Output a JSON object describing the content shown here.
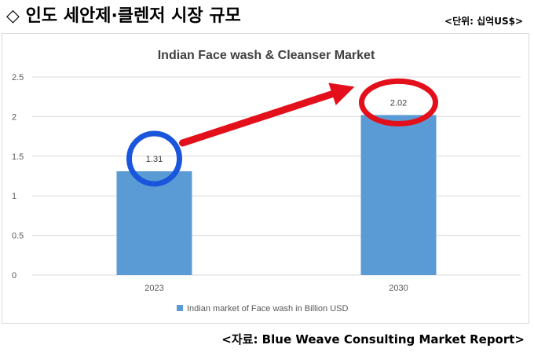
{
  "header": {
    "title": "◇ 인도 세안제·클렌저 시장 규모",
    "unit": "<단위: 십억US$>"
  },
  "source": "<자료: Blue Weave Consulting Market Report>",
  "colors": {
    "bar": "#5b9bd5",
    "circle_2023": "#1a56db",
    "circle_2030": "#e3101c",
    "arrow": "#e3101c",
    "grid": "#d9d9d9",
    "axis_text": "#595959",
    "title_text": "#404040"
  },
  "chart_data": {
    "type": "bar",
    "title": "Indian Face wash & Cleanser Market",
    "categories": [
      "2023",
      "2030"
    ],
    "series": [
      {
        "name": "Indian market of Face wash in Billion USD",
        "values": [
          1.31,
          2.02
        ],
        "data_labels": [
          "1.31",
          "2.02"
        ]
      }
    ],
    "ylim": [
      0,
      2.5
    ],
    "yticks": [
      "0",
      "0.5",
      "1",
      "1.5",
      "2",
      "2.5"
    ],
    "grid": true,
    "legend_position": "bottom",
    "annotations": [
      {
        "type": "circle",
        "target": "2023",
        "color": "blue"
      },
      {
        "type": "circle",
        "target": "2030",
        "color": "red"
      },
      {
        "type": "arrow",
        "from": "2023",
        "to": "2030",
        "color": "red"
      }
    ]
  }
}
